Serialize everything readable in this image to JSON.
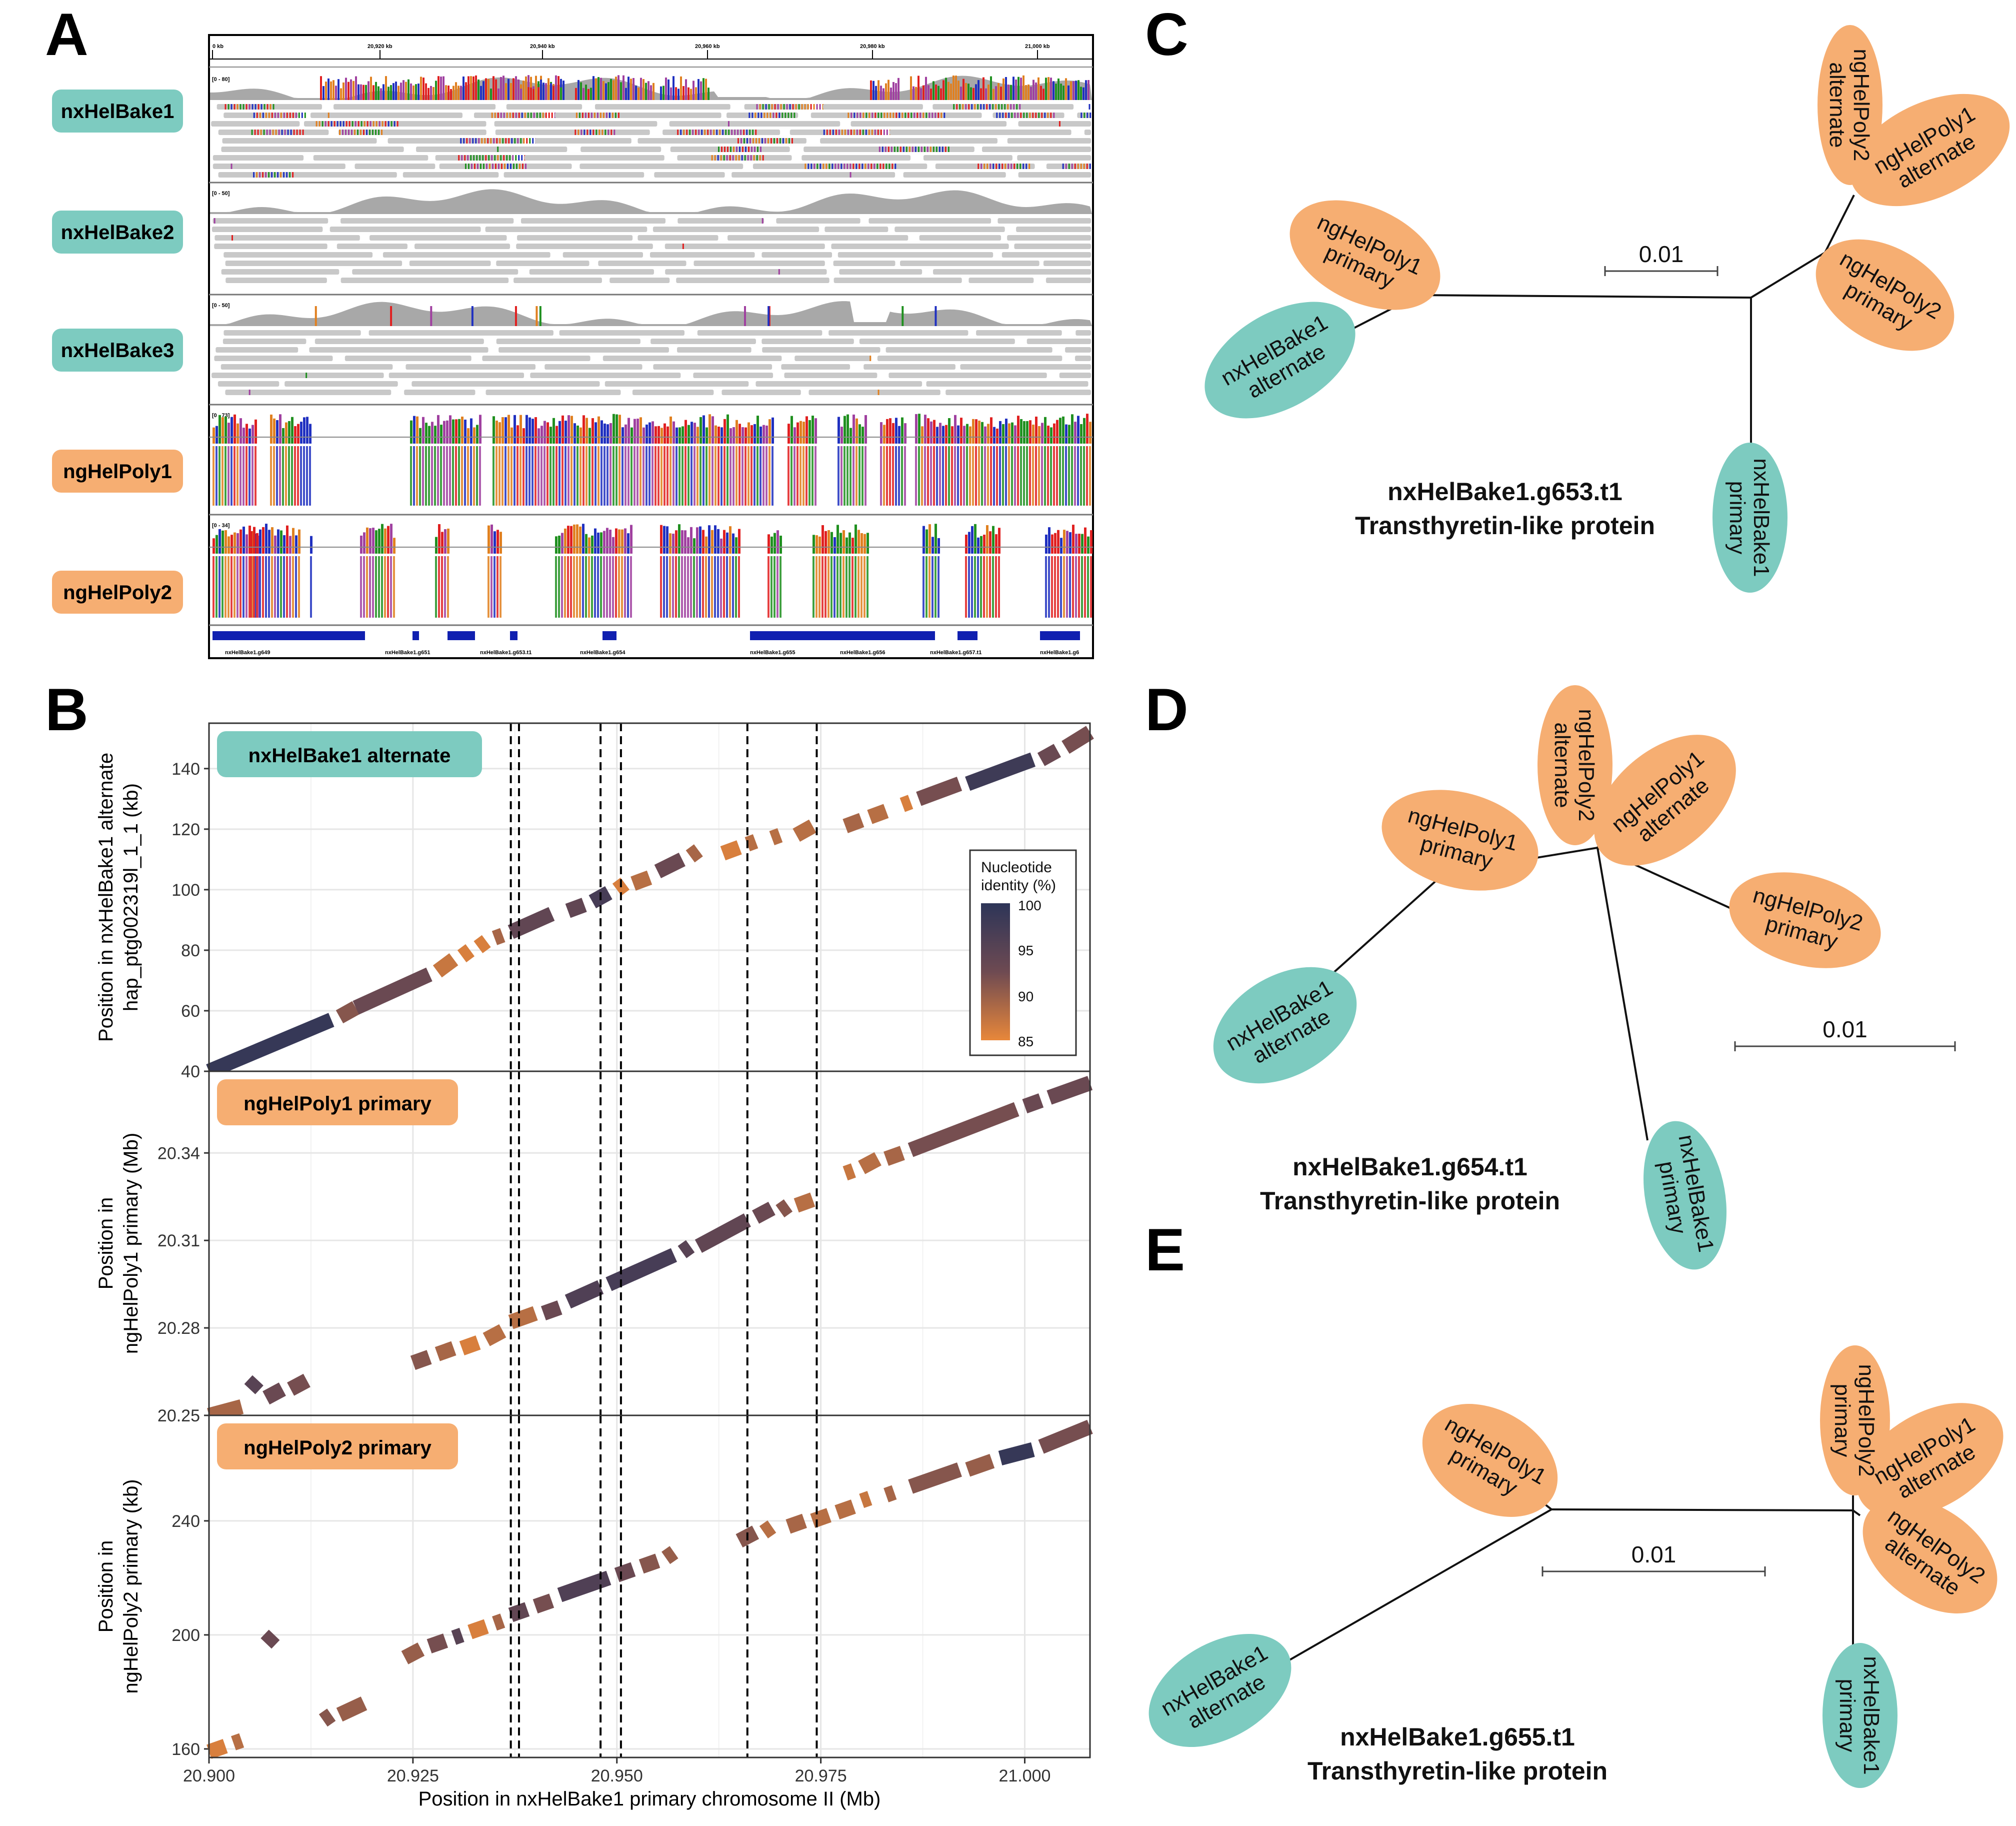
{
  "colors": {
    "teal": "#7DCBC0",
    "orange": "#F6AE72",
    "identity_high": "#2D3558",
    "identity_mid": "#6E4A52",
    "identity_low": "#E8873A"
  },
  "panels": {
    "A": "A",
    "B": "B",
    "C": "C",
    "D": "D",
    "E": "E"
  },
  "panelA": {
    "ruler_labels": [
      "0 kb",
      "20,920 kb",
      "20,940 kb",
      "20,960 kb",
      "20,980 kb",
      "21,000 kb"
    ],
    "tracks": [
      {
        "label": "nxHelBake1",
        "group": "teal",
        "range": "[0 - 80]"
      },
      {
        "label": "nxHelBake2",
        "group": "teal",
        "range": "[0 - 50]"
      },
      {
        "label": "nxHelBake3",
        "group": "teal",
        "range": "[0 - 50]"
      },
      {
        "label": "ngHelPoly1",
        "group": "orange",
        "range": "[0 - 73]"
      },
      {
        "label": "ngHelPoly2",
        "group": "orange",
        "range": "[0 - 34]"
      }
    ],
    "genes": [
      "nxHelBake1.g649",
      "nxHelBake1.g651",
      "nxHelBake1.g653.t1",
      "nxHelBake1.g654",
      "nxHelBake1.g655",
      "nxHelBake1.g656",
      "nxHelBake1.g657.t1",
      "nxHelBake1.g6"
    ]
  },
  "panelB": {
    "xlabel": "Position in nxHelBake1 primary chromosome II (Mb)",
    "x_ticks": [
      "20.900",
      "20.925",
      "20.950",
      "20.975",
      "21.000"
    ],
    "x_range": [
      20.9,
      21.008
    ],
    "dashed_lines_x": [
      20.937,
      20.938,
      20.948,
      20.9505,
      20.966,
      20.9745
    ],
    "legend": {
      "title_line1": "Nucleotide",
      "title_line2": "identity (%)",
      "ticks": [
        "100",
        "95",
        "90",
        "85"
      ]
    },
    "facets": [
      {
        "label": "nxHelBake1 alternate",
        "group": "teal",
        "ylabel_line1": "Position in nxHelBake1 alternate",
        "ylabel_line2": "hap_ptg002319l_1_1 (kb)",
        "y_ticks": [
          "40",
          "60",
          "80",
          "100",
          "120",
          "140"
        ],
        "y_tick_values": [
          40,
          60,
          80,
          100,
          120,
          140
        ],
        "y_range": [
          40,
          155
        ]
      },
      {
        "label": "ngHelPoly1 primary",
        "group": "orange",
        "ylabel_line1": "Position in",
        "ylabel_line2": "ngHelPoly1 primary (Mb)",
        "y_ticks": [
          "20.25",
          "20.28",
          "20.31",
          "20.34"
        ],
        "y_tick_values": [
          20.25,
          20.28,
          20.31,
          20.34
        ],
        "y_range": [
          20.25,
          20.368
        ]
      },
      {
        "label": "ngHelPoly2 primary",
        "group": "orange",
        "ylabel_line1": "Position in",
        "ylabel_line2": "ngHelPoly2 primary (kb)",
        "y_ticks": [
          "160",
          "200",
          "240"
        ],
        "y_tick_values": [
          160,
          200,
          240
        ],
        "y_range": [
          157,
          277
        ]
      }
    ]
  },
  "chart_data": [
    {
      "type": "scatter",
      "title": "",
      "xlabel": "Position in nxHelBake1 primary chromosome II (Mb)",
      "ylabel": "Position in nxHelBake1 alternate hap_ptg002319l_1_1 (kb)",
      "series": [
        {
          "name": "nxHelBake1 alternate",
          "segments": [
            [
              20.9,
              40,
              20.915,
              57,
              99
            ],
            [
              20.916,
              58,
              20.918,
              61,
              91
            ],
            [
              20.918,
              61,
              20.927,
              72,
              93
            ],
            [
              20.928,
              73,
              20.93,
              77,
              87
            ],
            [
              20.931,
              78,
              20.932,
              80,
              86
            ],
            [
              20.933,
              81,
              20.934,
              83,
              86
            ],
            [
              20.935,
              84,
              20.936,
              85,
              89
            ],
            [
              20.937,
              86,
              20.942,
              92,
              94
            ],
            [
              20.944,
              93,
              20.946,
              95,
              94
            ],
            [
              20.947,
              96,
              20.949,
              99,
              97
            ],
            [
              20.95,
              100,
              20.951,
              102,
              86
            ],
            [
              20.952,
              102,
              20.954,
              104,
              88
            ],
            [
              20.955,
              106,
              20.958,
              110,
              93
            ],
            [
              20.959,
              111,
              20.96,
              113,
              89
            ],
            [
              20.963,
              112,
              20.965,
              114,
              86
            ],
            [
              20.966,
              115,
              20.967,
              116,
              88
            ],
            [
              20.969,
              117,
              20.97,
              118,
              88
            ],
            [
              20.972,
              118,
              20.974,
              121,
              88
            ],
            [
              20.978,
              121,
              20.98,
              123,
              89
            ],
            [
              20.981,
              124,
              20.983,
              126,
              88
            ],
            [
              20.985,
              128,
              20.986,
              129,
              86
            ],
            [
              20.987,
              130,
              20.992,
              135,
              92
            ],
            [
              20.993,
              135,
              21.001,
              143,
              98
            ],
            [
              21.002,
              143,
              21.004,
              146,
              93
            ],
            [
              21.005,
              147,
              21.008,
              152,
              92
            ]
          ]
        }
      ],
      "xlim": [
        20.9,
        21.008
      ],
      "ylim": [
        40,
        155
      ]
    },
    {
      "type": "scatter",
      "title": "",
      "xlabel": "Position in nxHelBake1 primary chromosome II (Mb)",
      "ylabel": "Position in ngHelPoly1 primary (Mb)",
      "series": [
        {
          "name": "ngHelPoly1 primary",
          "segments": [
            [
              20.9,
              20.25,
              20.904,
              20.253,
              89
            ],
            [
              20.905,
              20.259,
              20.906,
              20.262,
              95
            ],
            [
              20.907,
              20.256,
              20.909,
              20.259,
              93
            ],
            [
              20.91,
              20.259,
              20.912,
              20.262,
              92
            ],
            [
              20.925,
              20.268,
              20.927,
              20.27,
              91
            ],
            [
              20.928,
              20.271,
              20.93,
              20.273,
              89
            ],
            [
              20.931,
              20.273,
              20.933,
              20.275,
              86
            ],
            [
              20.934,
              20.276,
              20.936,
              20.279,
              88
            ],
            [
              20.937,
              20.282,
              20.94,
              20.285,
              88
            ],
            [
              20.941,
              20.285,
              20.943,
              20.287,
              93
            ],
            [
              20.944,
              20.289,
              20.948,
              20.294,
              96
            ],
            [
              20.949,
              20.295,
              20.957,
              20.305,
              97
            ],
            [
              20.958,
              20.306,
              20.959,
              20.308,
              95
            ],
            [
              20.96,
              20.308,
              20.966,
              20.317,
              94
            ],
            [
              20.967,
              20.318,
              20.969,
              20.321,
              93
            ],
            [
              20.97,
              20.32,
              20.971,
              20.322,
              91
            ],
            [
              20.972,
              20.322,
              20.974,
              20.324,
              88
            ],
            [
              20.978,
              20.333,
              20.979,
              20.334,
              87
            ],
            [
              20.98,
              20.335,
              20.982,
              20.338,
              88
            ],
            [
              20.983,
              20.338,
              20.985,
              20.34,
              89
            ],
            [
              20.986,
              20.341,
              20.999,
              20.355,
              92
            ],
            [
              21.0,
              20.356,
              21.002,
              20.358,
              93
            ],
            [
              21.003,
              20.359,
              21.008,
              20.364,
              93
            ]
          ]
        }
      ],
      "xlim": [
        20.9,
        21.008
      ],
      "ylim": [
        20.25,
        20.368
      ]
    },
    {
      "type": "scatter",
      "title": "",
      "xlabel": "Position in nxHelBake1 primary chromosome II (Mb)",
      "ylabel": "Position in ngHelPoly2 primary (kb)",
      "series": [
        {
          "name": "ngHelPoly2 primary",
          "segments": [
            [
              20.9,
              159,
              20.902,
              161,
              86
            ],
            [
              20.903,
              162,
              20.904,
              163,
              88
            ],
            [
              20.907,
              197,
              20.908,
              200,
              93
            ],
            [
              20.914,
              170,
              20.915,
              172,
              91
            ],
            [
              20.916,
              172,
              20.919,
              176,
              90
            ],
            [
              20.924,
              192,
              20.926,
              195,
              90
            ],
            [
              20.927,
              196,
              20.929,
              198,
              92
            ],
            [
              20.93,
              199,
              20.931,
              200,
              95
            ],
            [
              20.932,
              201,
              20.934,
              203,
              86
            ],
            [
              20.935,
              204,
              20.936,
              205,
              89
            ],
            [
              20.937,
              207,
              20.939,
              209,
              94
            ],
            [
              20.94,
              210,
              20.942,
              212,
              92
            ],
            [
              20.943,
              214,
              20.949,
              220,
              96
            ],
            [
              20.95,
              221,
              20.952,
              223,
              93
            ],
            [
              20.953,
              224,
              20.955,
              226,
              91
            ],
            [
              20.956,
              227,
              20.957,
              229,
              90
            ],
            [
              20.965,
              233,
              20.967,
              236,
              91
            ],
            [
              20.968,
              236,
              20.969,
              238,
              88
            ],
            [
              20.971,
              238,
              20.973,
              240,
              89
            ],
            [
              20.974,
              240,
              20.976,
              242,
              88
            ],
            [
              20.977,
              243,
              20.979,
              245,
              88
            ],
            [
              20.98,
              247,
              20.981,
              248,
              87
            ],
            [
              20.983,
              249,
              20.984,
              250,
              89
            ],
            [
              20.986,
              252,
              20.992,
              258,
              91
            ],
            [
              20.993,
              258,
              20.996,
              261,
              90
            ],
            [
              20.997,
              262,
              21.001,
              265,
              99
            ],
            [
              21.002,
              266,
              21.008,
              273,
              92
            ]
          ]
        }
      ],
      "xlim": [
        20.9,
        21.008
      ],
      "ylim": [
        157,
        277
      ]
    }
  ],
  "trees": [
    {
      "title_line1": "nxHelBake1.g653.t1",
      "title_line2": "Transthyretin-like protein",
      "scale_label": "0.01",
      "leaves": [
        {
          "line1": "ngHelPoly2",
          "line2": "alternate",
          "group": "orange"
        },
        {
          "line1": "ngHelPoly1",
          "line2": "alternate",
          "group": "orange"
        },
        {
          "line1": "ngHelPoly2",
          "line2": "primary",
          "group": "orange"
        },
        {
          "line1": "ngHelPoly1",
          "line2": "primary",
          "group": "orange"
        },
        {
          "line1": "nxHelBake1",
          "line2": "alternate",
          "group": "teal"
        },
        {
          "line1": "nxHelBake1",
          "line2": "primary",
          "group": "teal"
        }
      ]
    },
    {
      "title_line1": "nxHelBake1.g654.t1",
      "title_line2": "Transthyretin-like protein",
      "scale_label": "0.01",
      "leaves": [
        {
          "line1": "ngHelPoly2",
          "line2": "alternate",
          "group": "orange"
        },
        {
          "line1": "ngHelPoly1",
          "line2": "alternate",
          "group": "orange"
        },
        {
          "line1": "ngHelPoly1",
          "line2": "primary",
          "group": "orange"
        },
        {
          "line1": "ngHelPoly2",
          "line2": "primary",
          "group": "orange"
        },
        {
          "line1": "nxHelBake1",
          "line2": "alternate",
          "group": "teal"
        },
        {
          "line1": "nxHelBake1",
          "line2": "primary",
          "group": "teal"
        }
      ]
    },
    {
      "title_line1": "nxHelBake1.g655.t1",
      "title_line2": "Transthyretin-like protein",
      "scale_label": "0.01",
      "leaves": [
        {
          "line1": "ngHelPoly1",
          "line2": "primary",
          "group": "orange"
        },
        {
          "line1": "ngHelPoly2",
          "line2": "primary",
          "group": "orange"
        },
        {
          "line1": "ngHelPoly1",
          "line2": "alternate",
          "group": "orange"
        },
        {
          "line1": "ngHelPoly2",
          "line2": "alternate",
          "group": "orange"
        },
        {
          "line1": "nxHelBake1",
          "line2": "alternate",
          "group": "teal"
        },
        {
          "line1": "nxHelBake1",
          "line2": "primary",
          "group": "teal"
        }
      ]
    }
  ]
}
